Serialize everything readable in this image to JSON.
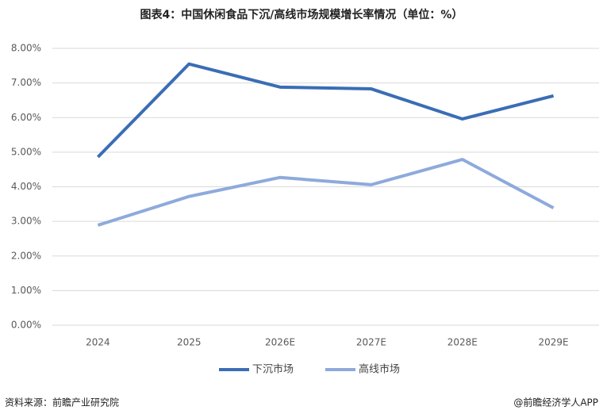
{
  "chart_data": {
    "type": "line",
    "title": "图表4：中国休闲食品下沉/高线市场规模增长率情况（单位：%）",
    "categories": [
      "2024",
      "2025",
      "2026E",
      "2027E",
      "2028E",
      "2029E"
    ],
    "series": [
      {
        "name": "下沉市场",
        "color": "#3a6db5",
        "values": [
          4.86,
          7.55,
          6.88,
          6.83,
          5.96,
          6.63
        ]
      },
      {
        "name": "高线市场",
        "color": "#8eaadb",
        "values": [
          2.89,
          3.72,
          4.27,
          4.06,
          4.79,
          3.39
        ]
      }
    ],
    "ylim": [
      0,
      8
    ],
    "yticks": [
      {
        "value": 0,
        "label": "0.00%"
      },
      {
        "value": 1,
        "label": "1.00%"
      },
      {
        "value": 2,
        "label": "2.00%"
      },
      {
        "value": 3,
        "label": "3.00%"
      },
      {
        "value": 4,
        "label": "4.00%"
      },
      {
        "value": 5,
        "label": "5.00%"
      },
      {
        "value": 6,
        "label": "6.00%"
      },
      {
        "value": 7,
        "label": "7.00%"
      },
      {
        "value": 8,
        "label": "8.00%"
      }
    ],
    "grid": true,
    "legend": "bottom",
    "source": "资料来源：前瞻产业研究院",
    "brand": "@前瞻经济学人APP"
  }
}
